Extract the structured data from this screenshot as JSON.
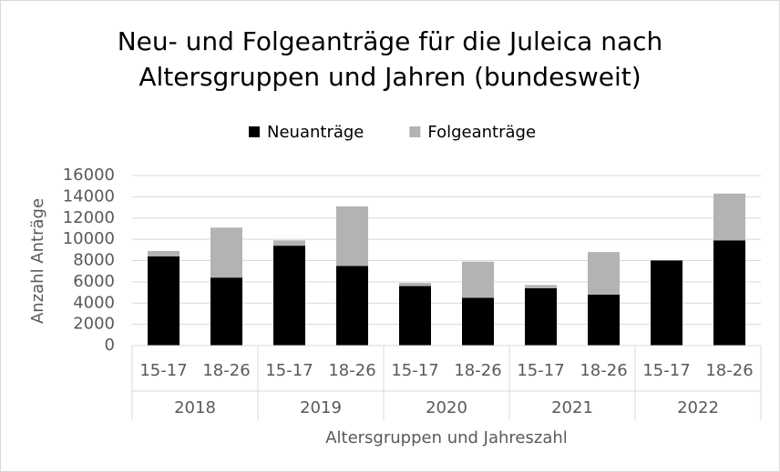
{
  "chart_data": {
    "type": "stacked_bar",
    "title": [
      "Neu- und Folgeanträge für die Juleica nach",
      "Altersgruppen und Jahren (bundesweit)"
    ],
    "x_label": "Altersgruppen und Jahreszahl",
    "y_label": "Anzahl Anträge",
    "groups": [
      "2018",
      "2019",
      "2020",
      "2021",
      "2022"
    ],
    "categories": [
      "15-17",
      "18-26",
      "15-17",
      "18-26",
      "15-17",
      "18-26",
      "15-17",
      "18-26",
      "15-17",
      "18-26"
    ],
    "series": [
      {
        "name": "Neuanträge",
        "color": "#000000",
        "values": [
          8400,
          6400,
          9400,
          7500,
          5600,
          4500,
          5400,
          4800,
          8000,
          9900
        ]
      },
      {
        "name": "Folgeanträge",
        "color": "#b3b3b3",
        "values": [
          500,
          4700,
          500,
          5600,
          300,
          3400,
          300,
          4000,
          50,
          4400
        ]
      }
    ],
    "ylim": [
      0,
      16000
    ],
    "yticks": [
      0,
      2000,
      4000,
      6000,
      8000,
      10000,
      12000,
      14000,
      16000
    ],
    "grid": true,
    "legend": "top"
  }
}
